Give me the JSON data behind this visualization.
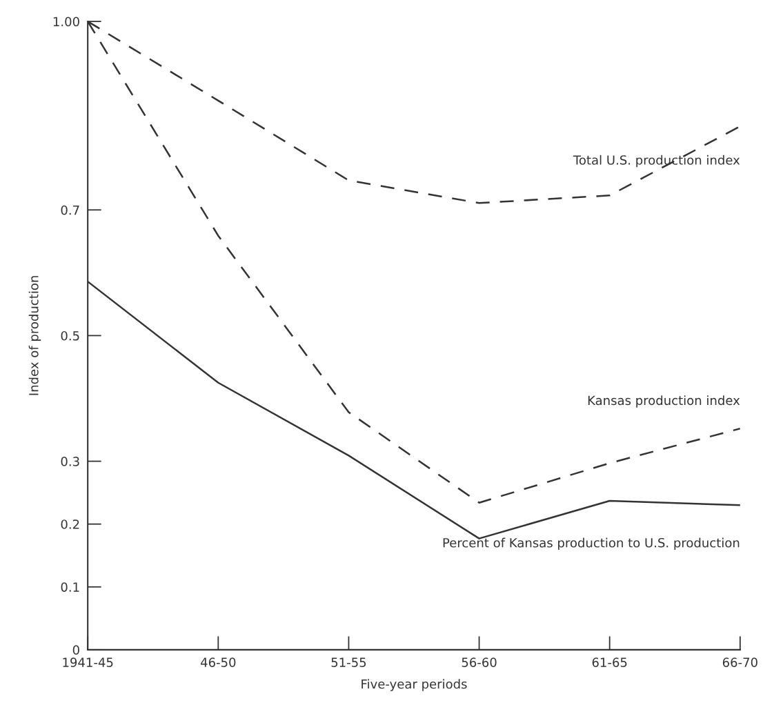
{
  "chart_data": {
    "type": "line",
    "xlabel": "Five-year periods",
    "ylabel": "Index of production",
    "categories": [
      "1941-45",
      "46-50",
      "51-55",
      "56-60",
      "61-65",
      "66-70"
    ],
    "ylim": [
      0,
      1.0
    ],
    "yticks": [
      0,
      0.1,
      0.2,
      0.3,
      0.5,
      0.7,
      {
        "value": 1.0,
        "label": "1.00"
      }
    ],
    "grid": false,
    "marker": "none",
    "series": [
      {
        "name": "Total U.S. production index",
        "color": "#333333",
        "line_style": "dashed",
        "values": [
          1.0,
          0.874,
          0.747,
          0.711,
          0.723,
          0.833
        ]
      },
      {
        "name": "Kansas production index",
        "color": "#333333",
        "line_style": "dashed",
        "values": [
          1.0,
          0.659,
          0.378,
          0.234,
          0.297,
          0.352
        ]
      },
      {
        "name": "Percent of Kansas production to U.S. production",
        "color": "#333333",
        "line_style": "solid",
        "values": [
          0.586,
          0.425,
          0.309,
          0.177,
          0.237,
          0.23
        ]
      }
    ]
  }
}
